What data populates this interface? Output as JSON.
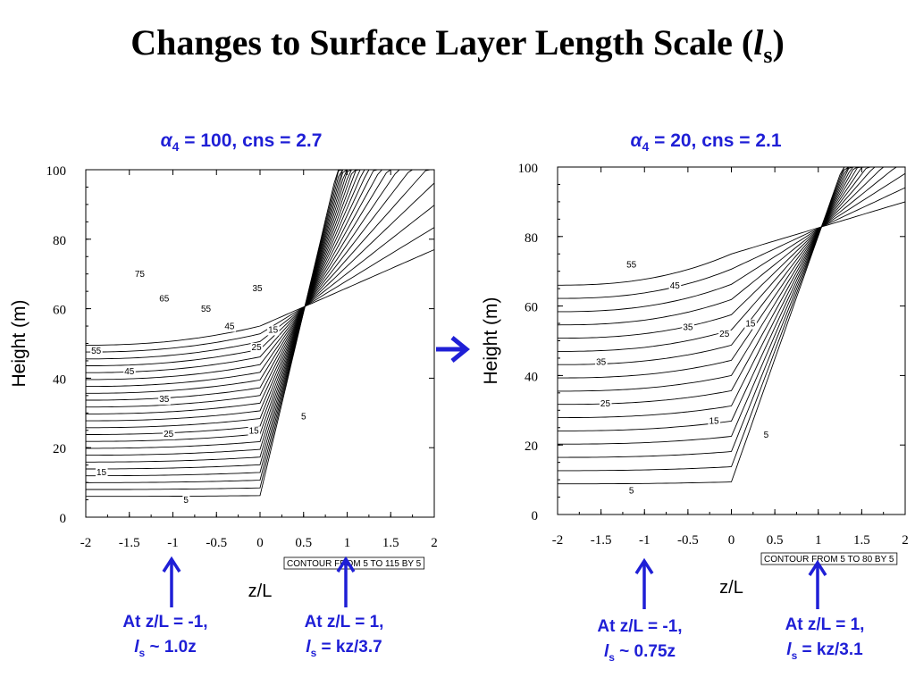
{
  "slide": {
    "title_prefix": "Changes to Surface Layer Length Scale (",
    "title_l": "l",
    "title_sub": "s",
    "title_suffix": ")"
  },
  "middle_arrow": "right-arrow-icon",
  "colors": {
    "accent": "#1f1fd6",
    "contour": "#000000"
  },
  "chart_data": [
    {
      "type": "line",
      "subtype": "contour",
      "title_alpha": "α",
      "title_sub": "4",
      "title_rest": " = 100, cns = 2.7",
      "xlabel": "z/L",
      "ylabel": "Height (m)",
      "xlim": [
        -2,
        2
      ],
      "ylim": [
        0,
        100
      ],
      "xticks": [
        -2,
        -1.5,
        -1,
        -0.5,
        0,
        0.5,
        1,
        1.5,
        2
      ],
      "xtick_labels": [
        "-2",
        "-1.5",
        "-1",
        "-0.5",
        "0",
        "0.5",
        "1",
        "1.5",
        "2"
      ],
      "yticks": [
        0,
        20,
        40,
        60,
        80,
        100
      ],
      "ytick_labels": [
        "0",
        "20",
        "40",
        "60",
        "80",
        "100"
      ],
      "contour_info": "CONTOUR FROM 5 TO 115 BY 5",
      "contour_levels": [
        5,
        10,
        15,
        20,
        25,
        30,
        35,
        40,
        45,
        50,
        55,
        60,
        65,
        70,
        75,
        80,
        85,
        90,
        95,
        100,
        105,
        110,
        115
      ],
      "contour_labels": [
        {
          "text": "75",
          "x": -1.38,
          "y": 70
        },
        {
          "text": "65",
          "x": -1.1,
          "y": 63
        },
        {
          "text": "55",
          "x": -0.62,
          "y": 60
        },
        {
          "text": "55",
          "x": -1.88,
          "y": 48
        },
        {
          "text": "45",
          "x": -0.35,
          "y": 55
        },
        {
          "text": "45",
          "x": -1.5,
          "y": 42
        },
        {
          "text": "35",
          "x": -1.1,
          "y": 34
        },
        {
          "text": "35",
          "x": -0.03,
          "y": 66
        },
        {
          "text": "25",
          "x": -1.05,
          "y": 24
        },
        {
          "text": "25",
          "x": -0.04,
          "y": 49
        },
        {
          "text": "15",
          "x": 0.15,
          "y": 54
        },
        {
          "text": "15",
          "x": -0.07,
          "y": 25
        },
        {
          "text": "15",
          "x": -1.82,
          "y": 13
        },
        {
          "text": "5",
          "x": 0.5,
          "y": 29
        },
        {
          "text": "5",
          "x": -0.85,
          "y": 5
        }
      ],
      "annotation_left": {
        "line1": "At z/L = -1,",
        "l": "l",
        "sub": "s",
        "rest": " ~ 1.0z"
      },
      "annotation_right": {
        "line1": "At z/L = 1,",
        "l": "l",
        "sub": "s",
        "rest": " = kz/3.7"
      }
    },
    {
      "type": "line",
      "subtype": "contour",
      "title_alpha": "α",
      "title_sub": "4",
      "title_rest": " = 20, cns = 2.1",
      "xlabel": "z/L",
      "ylabel": "Height (m)",
      "xlim": [
        -2,
        2
      ],
      "ylim": [
        0,
        100
      ],
      "xticks": [
        -2,
        -1.5,
        -1,
        -0.5,
        0,
        0.5,
        1,
        1.5,
        2
      ],
      "xtick_labels": [
        "-2",
        "-1.5",
        "-1",
        "-0.5",
        "0",
        "0.5",
        "1",
        "1.5",
        "2"
      ],
      "yticks": [
        0,
        20,
        40,
        60,
        80,
        100
      ],
      "ytick_labels": [
        "0",
        "20",
        "40",
        "60",
        "80",
        "100"
      ],
      "contour_info": "CONTOUR FROM 5 TO 80 BY 5",
      "contour_levels": [
        5,
        10,
        15,
        20,
        25,
        30,
        35,
        40,
        45,
        50,
        55,
        60,
        65,
        70,
        75,
        80
      ],
      "contour_labels": [
        {
          "text": "55",
          "x": -1.15,
          "y": 72
        },
        {
          "text": "45",
          "x": -0.65,
          "y": 66
        },
        {
          "text": "35",
          "x": -0.5,
          "y": 54
        },
        {
          "text": "35",
          "x": -1.5,
          "y": 44
        },
        {
          "text": "25",
          "x": -0.08,
          "y": 52
        },
        {
          "text": "25",
          "x": -1.45,
          "y": 32
        },
        {
          "text": "15",
          "x": 0.22,
          "y": 55
        },
        {
          "text": "15",
          "x": -0.2,
          "y": 27
        },
        {
          "text": "5",
          "x": 0.4,
          "y": 23
        },
        {
          "text": "5",
          "x": -1.15,
          "y": 7
        }
      ],
      "annotation_left": {
        "line1": "At z/L = -1,",
        "l": "l",
        "sub": "s",
        "rest": " ~ 0.75z"
      },
      "annotation_right": {
        "line1": "At z/L = 1,",
        "l": "l",
        "sub": "s",
        "rest": " = kz/3.1"
      }
    }
  ]
}
